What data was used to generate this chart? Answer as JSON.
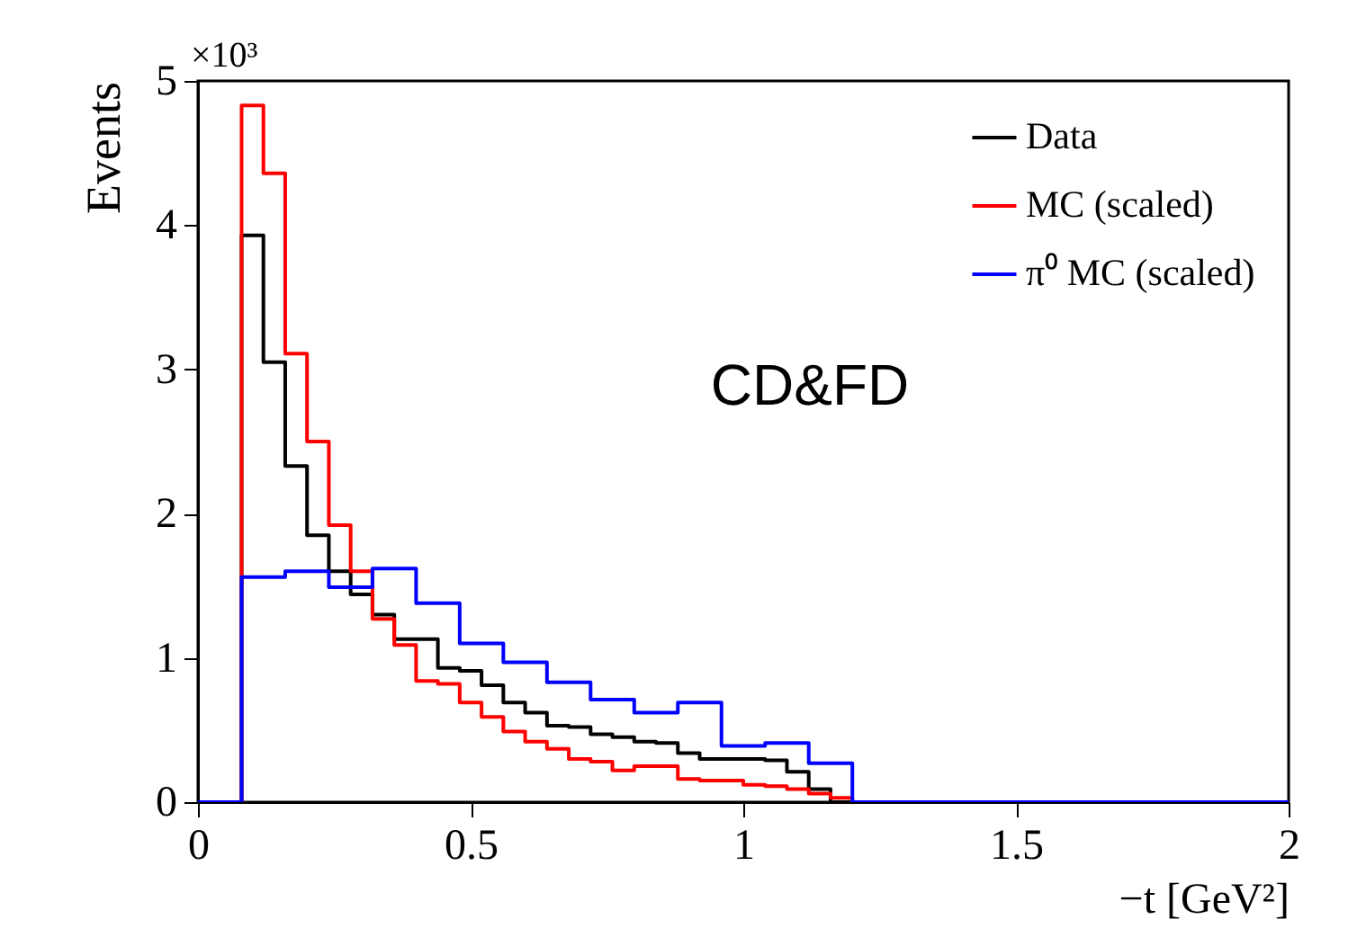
{
  "chart_data": {
    "type": "histogram",
    "xlabel": "−t [GeV²]",
    "ylabel": "Events",
    "annotations": [
      "×10³",
      "CD&FD"
    ],
    "bins": [
      0,
      0.04,
      0.08,
      0.12,
      0.16,
      0.2,
      0.24,
      0.28,
      0.32,
      0.36,
      0.4,
      0.44,
      0.48,
      0.52,
      0.56,
      0.6,
      0.64,
      0.68,
      0.72,
      0.76,
      0.8,
      0.84,
      0.88,
      0.92,
      0.96,
      1,
      1.04,
      1.08,
      1.12,
      1.16,
      1.2,
      1.24,
      1.28,
      1.32,
      1.36,
      1.4,
      1.44,
      1.48,
      1.52,
      1.56,
      1.6,
      1.64,
      1.68,
      1.72,
      1.76,
      1.8,
      1.84,
      1.88,
      1.92,
      1.96,
      2
    ],
    "series": [
      {
        "name": "Data",
        "color": "#000000",
        "values": [
          0,
          0,
          3.93,
          3.05,
          2.33,
          1.85,
          1.6,
          1.44,
          1.3,
          1.13,
          1.13,
          0.93,
          0.91,
          0.81,
          0.69,
          0.62,
          0.53,
          0.52,
          0.47,
          0.45,
          0.42,
          0.41,
          0.34,
          0.3,
          0.3,
          0.3,
          0.29,
          0.21,
          0.09,
          0,
          0,
          0,
          0,
          0,
          0,
          0,
          0,
          0,
          0,
          0,
          0,
          0,
          0,
          0,
          0,
          0,
          0,
          0,
          0,
          0
        ]
      },
      {
        "name": "MC (scaled)",
        "color": "#ff0000",
        "values": [
          0,
          0,
          4.83,
          4.36,
          3.11,
          2.5,
          1.92,
          1.6,
          1.27,
          1.09,
          0.84,
          0.82,
          0.69,
          0.59,
          0.49,
          0.42,
          0.37,
          0.3,
          0.28,
          0.22,
          0.25,
          0.25,
          0.16,
          0.15,
          0.15,
          0.12,
          0.11,
          0.09,
          0.06,
          0.03,
          0,
          0,
          0,
          0,
          0,
          0,
          0,
          0,
          0,
          0,
          0,
          0,
          0,
          0,
          0,
          0,
          0,
          0,
          0,
          0
        ]
      },
      {
        "name": "π⁰ MC (scaled)",
        "color": "#0000ff",
        "values": [
          0,
          0,
          1.56,
          1.56,
          1.6,
          1.6,
          1.49,
          1.49,
          1.62,
          1.62,
          1.38,
          1.38,
          1.1,
          1.1,
          0.97,
          0.97,
          0.83,
          0.83,
          0.71,
          0.71,
          0.62,
          0.62,
          0.69,
          0.69,
          0.39,
          0.39,
          0.41,
          0.41,
          0.27,
          0.27,
          0,
          0,
          0,
          0,
          0,
          0,
          0,
          0,
          0,
          0,
          0,
          0,
          0,
          0,
          0,
          0,
          0,
          0,
          0,
          0
        ]
      }
    ],
    "xlim": [
      0,
      2
    ],
    "xticks": [
      0,
      0.5,
      1,
      1.5,
      2
    ],
    "ylim": [
      0,
      5
    ],
    "yticks": [
      0,
      1,
      2,
      3,
      4,
      5
    ],
    "grid": false,
    "legend": "top right"
  }
}
